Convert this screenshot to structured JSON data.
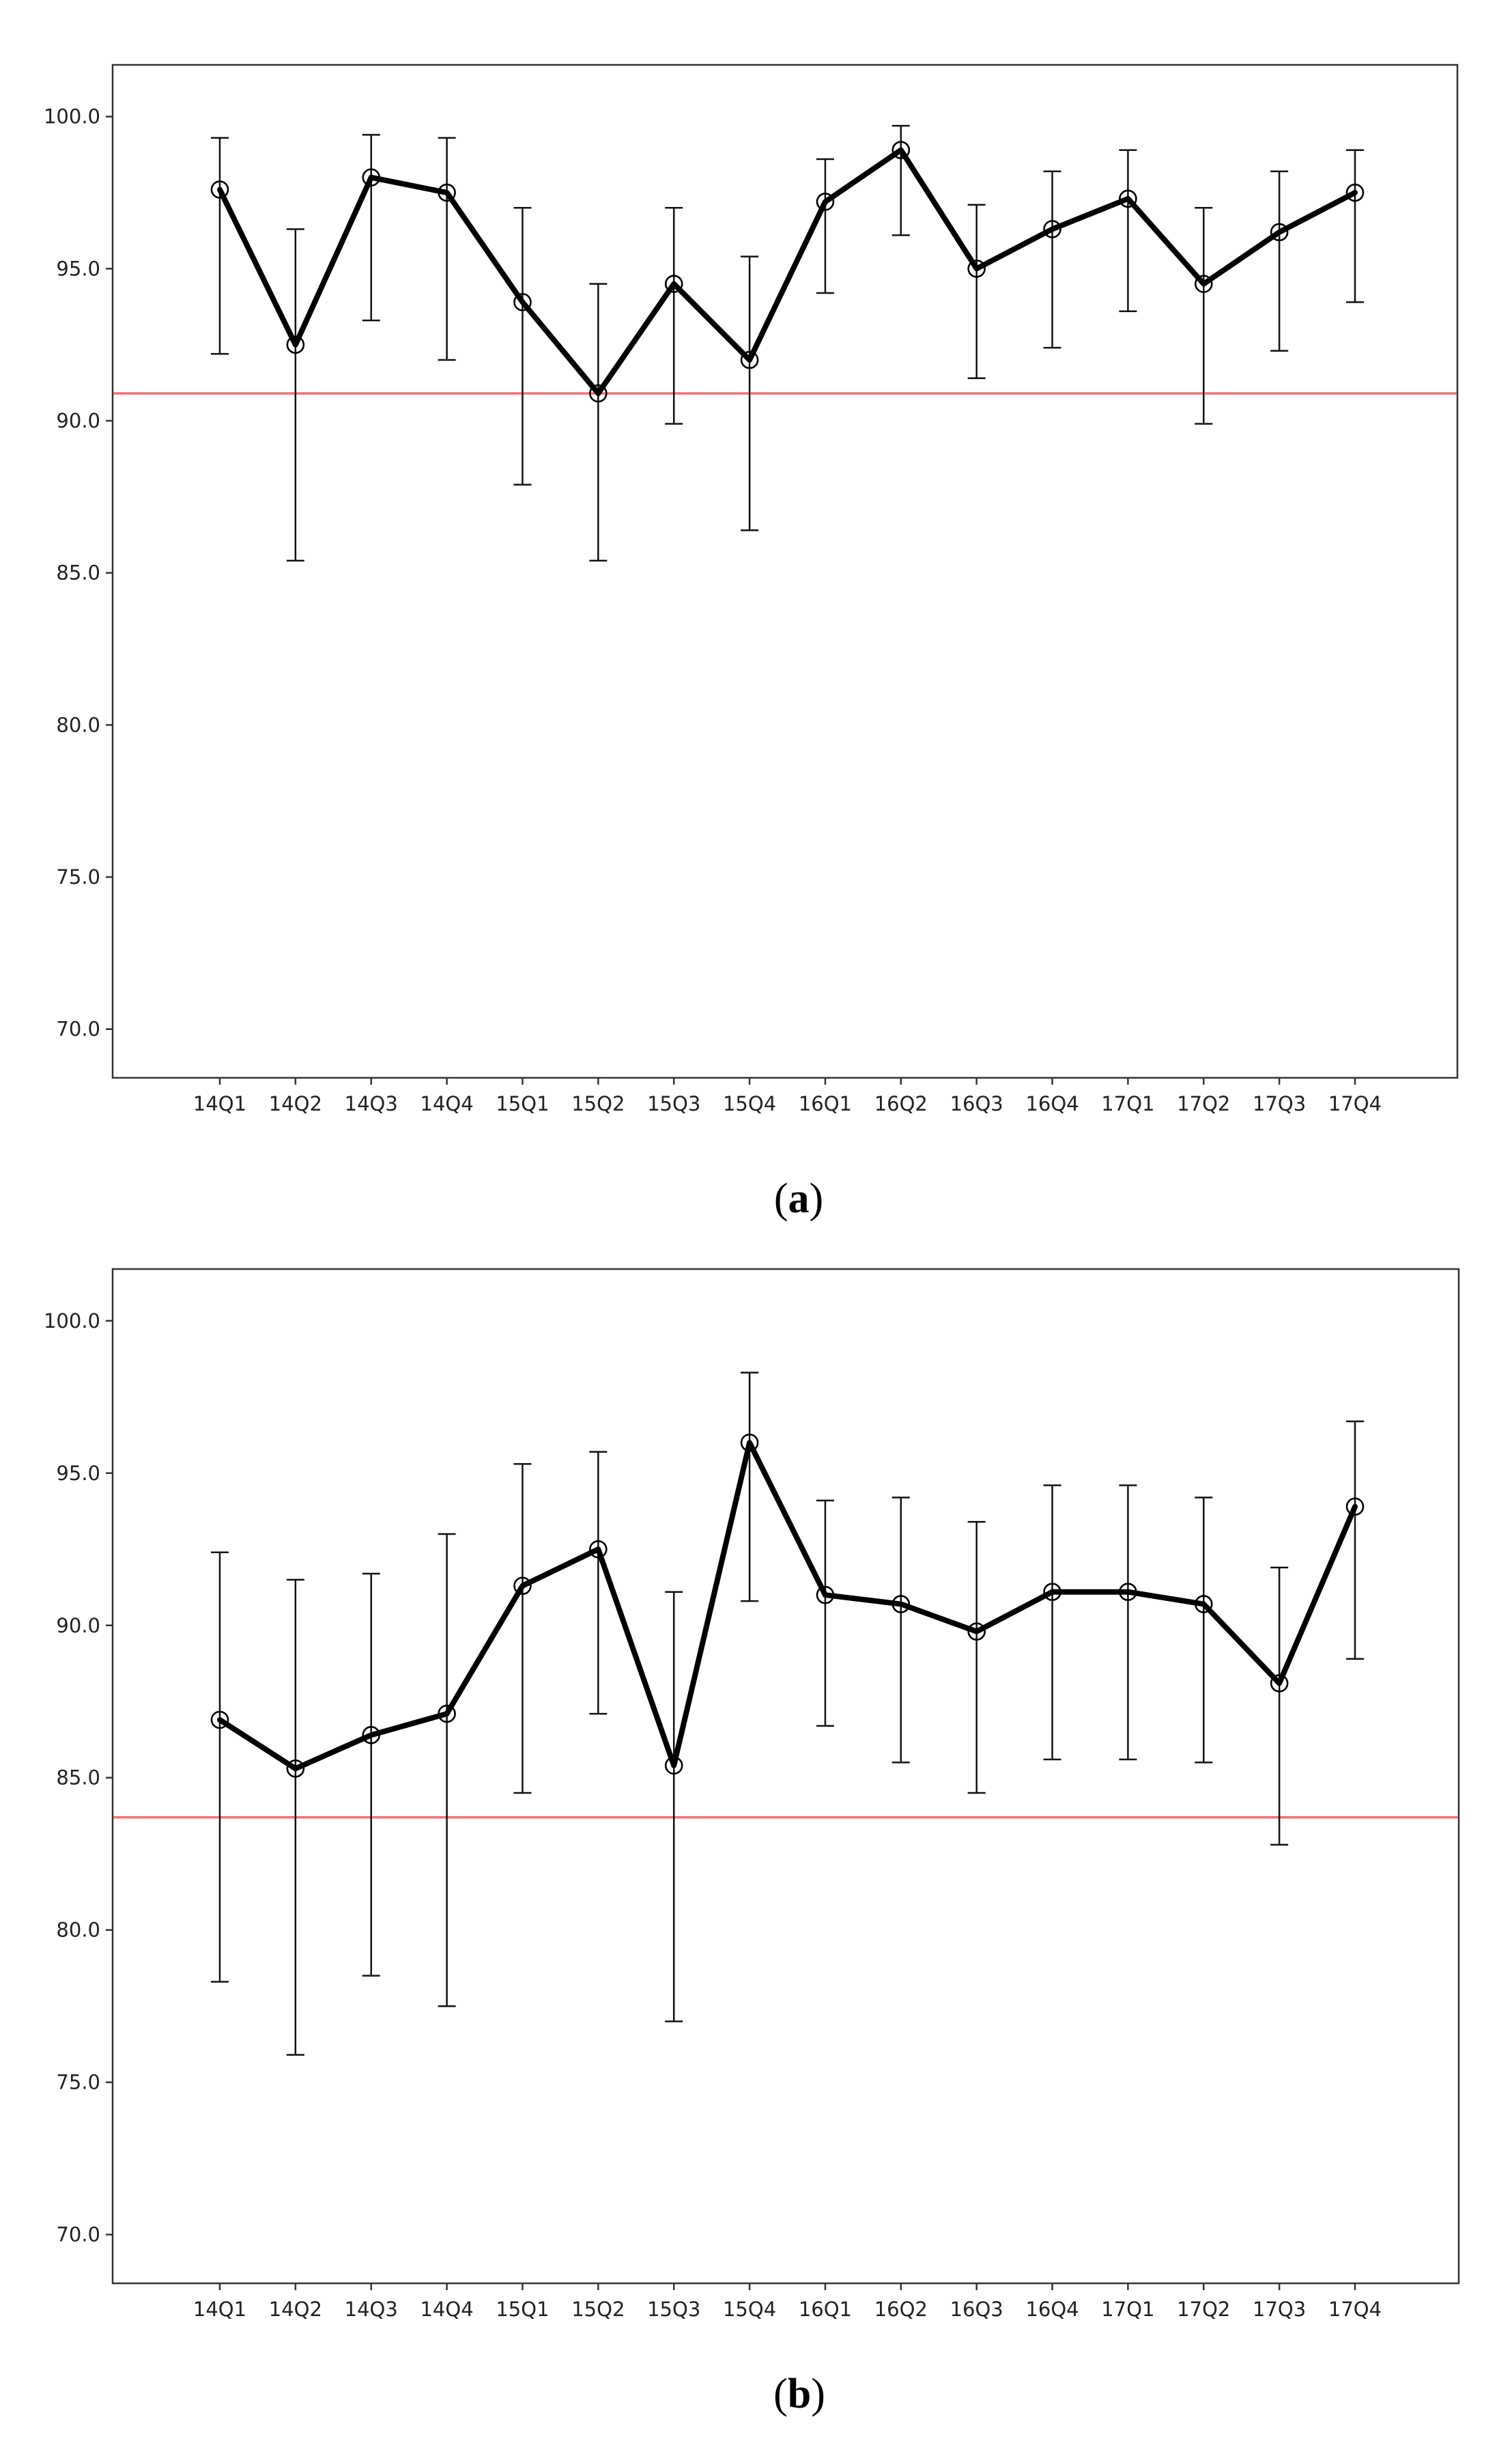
{
  "chart_data": [
    {
      "panel_label": "a",
      "type": "line",
      "subtype": "means with error bars",
      "categories": [
        "14Q1",
        "14Q2",
        "14Q3",
        "14Q4",
        "15Q1",
        "15Q2",
        "15Q3",
        "15Q4",
        "16Q1",
        "16Q2",
        "16Q3",
        "16Q4",
        "17Q1",
        "17Q2",
        "17Q3",
        "17Q4"
      ],
      "series": [
        {
          "values": [
            97.6,
            92.5,
            98.0,
            97.5,
            93.9,
            90.9,
            94.5,
            92.0,
            97.2,
            98.9,
            95.0,
            96.3,
            97.3,
            94.5,
            96.2,
            97.5
          ],
          "lower": [
            92.2,
            85.4,
            93.3,
            92.0,
            87.9,
            85.4,
            89.9,
            86.4,
            94.2,
            96.1,
            91.4,
            92.4,
            93.6,
            89.9,
            92.3,
            93.9
          ],
          "upper": [
            99.3,
            96.3,
            99.4,
            99.3,
            97.0,
            94.5,
            97.0,
            95.4,
            98.6,
            99.7,
            97.1,
            98.2,
            98.9,
            97.0,
            98.2,
            98.9
          ]
        }
      ],
      "reference_line": 90.9,
      "y_ticks": [
        "70.0",
        "75.0",
        "80.0",
        "85.0",
        "90.0",
        "95.0",
        "100.0"
      ],
      "ylim": [
        68.4,
        101.7
      ],
      "grid": false,
      "legend": "none",
      "colors": {
        "series": "#000000",
        "error_bars": "#111111",
        "reference": "#e8757a"
      }
    },
    {
      "panel_label": "b",
      "type": "line",
      "subtype": "means with error bars",
      "categories": [
        "14Q1",
        "14Q2",
        "14Q3",
        "14Q4",
        "15Q1",
        "15Q2",
        "15Q3",
        "15Q4",
        "16Q1",
        "16Q2",
        "16Q3",
        "16Q4",
        "17Q1",
        "17Q2",
        "17Q3",
        "17Q4"
      ],
      "series": [
        {
          "values": [
            86.9,
            85.3,
            86.4,
            87.1,
            91.3,
            92.5,
            85.4,
            96.0,
            91.0,
            90.7,
            89.8,
            91.1,
            91.1,
            90.7,
            88.1,
            93.9
          ],
          "lower": [
            78.3,
            75.9,
            78.5,
            77.5,
            84.5,
            87.1,
            77.0,
            90.8,
            86.7,
            85.5,
            84.5,
            85.6,
            85.6,
            85.5,
            82.8,
            88.9
          ],
          "upper": [
            92.4,
            91.5,
            91.7,
            93.0,
            95.3,
            95.7,
            91.1,
            98.3,
            94.1,
            94.2,
            93.4,
            94.6,
            94.6,
            94.2,
            91.9,
            96.7
          ]
        }
      ],
      "reference_line": 83.7,
      "y_ticks": [
        "70.0",
        "75.0",
        "80.0",
        "85.0",
        "90.0",
        "95.0",
        "100.0"
      ],
      "ylim": [
        68.4,
        101.7
      ],
      "grid": false,
      "legend": "none",
      "colors": {
        "series": "#000000",
        "error_bars": "#111111",
        "reference": "#e8757a"
      }
    }
  ]
}
